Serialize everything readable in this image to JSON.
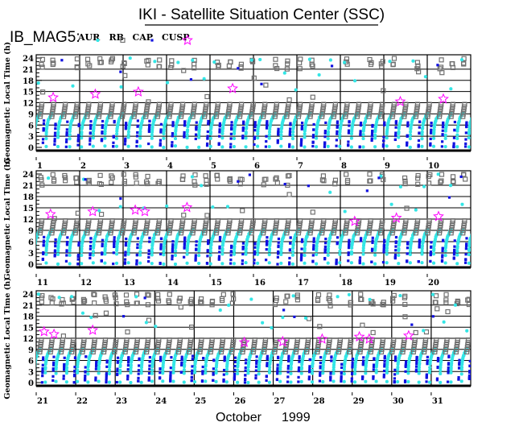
{
  "header": {
    "title": "IKI - Satellite Situation Center (SSC)",
    "instrument": "IB_MAG5:",
    "month_label": "October",
    "year_label": "1999"
  },
  "chart_data": {
    "type": "scatter",
    "title": "IKI - Satellite Situation Center (SSC)",
    "xlabel": "October 1999",
    "ylabel": "Geomagnetic Local Time (h)",
    "ylim": [
      0,
      24
    ],
    "yticks": [
      "0",
      "3",
      "6",
      "9",
      "12",
      "15",
      "18",
      "21",
      "24"
    ],
    "grid": true,
    "legend_placement": "top-left",
    "legend": [
      {
        "name": "AUR",
        "marker": "asterisk",
        "color": "#33e6e6"
      },
      {
        "name": "RB",
        "marker": "open-square",
        "color": "#707070"
      },
      {
        "name": "CAP",
        "marker": "dot",
        "color": "#1010e0"
      },
      {
        "name": "CUSP",
        "marker": "star",
        "color": "#ff00ff"
      }
    ],
    "orbits_per_day": 3.7,
    "panels": [
      {
        "days": [
          "1",
          "2",
          "3",
          "4",
          "5",
          "6",
          "7",
          "8",
          "9",
          "10"
        ],
        "start_day": 1,
        "span_days": 10
      },
      {
        "days": [
          "11",
          "12",
          "13",
          "14",
          "15",
          "16",
          "17",
          "18",
          "19",
          "20"
        ],
        "start_day": 11,
        "span_days": 10
      },
      {
        "days": [
          "21",
          "22",
          "23",
          "24",
          "25",
          "26",
          "27",
          "28",
          "29",
          "30",
          "31"
        ],
        "start_day": 21,
        "span_days": 11
      }
    ],
    "cusp_events": [
      {
        "day": 1.39,
        "mlt": 13.4
      },
      {
        "day": 2.36,
        "mlt": 14.3
      },
      {
        "day": 3.35,
        "mlt": 14.9
      },
      {
        "day": 5.52,
        "mlt": 15.8
      },
      {
        "day": 9.38,
        "mlt": 12.3
      },
      {
        "day": 10.37,
        "mlt": 13.0
      },
      {
        "day": 11.33,
        "mlt": 13.3
      },
      {
        "day": 12.3,
        "mlt": 14.0
      },
      {
        "day": 13.28,
        "mlt": 14.4
      },
      {
        "day": 13.5,
        "mlt": 14.0
      },
      {
        "day": 14.47,
        "mlt": 15.1
      },
      {
        "day": 18.33,
        "mlt": 11.4
      },
      {
        "day": 19.29,
        "mlt": 12.3
      },
      {
        "day": 20.26,
        "mlt": 12.7
      },
      {
        "day": 21.2,
        "mlt": 13.8
      },
      {
        "day": 21.45,
        "mlt": 13.1
      },
      {
        "day": 22.43,
        "mlt": 14.2
      },
      {
        "day": 26.27,
        "mlt": 10.9
      },
      {
        "day": 27.24,
        "mlt": 11.1
      },
      {
        "day": 28.24,
        "mlt": 11.8
      },
      {
        "day": 29.18,
        "mlt": 12.4
      },
      {
        "day": 29.43,
        "mlt": 11.8
      },
      {
        "day": 30.43,
        "mlt": 12.7
      }
    ]
  }
}
